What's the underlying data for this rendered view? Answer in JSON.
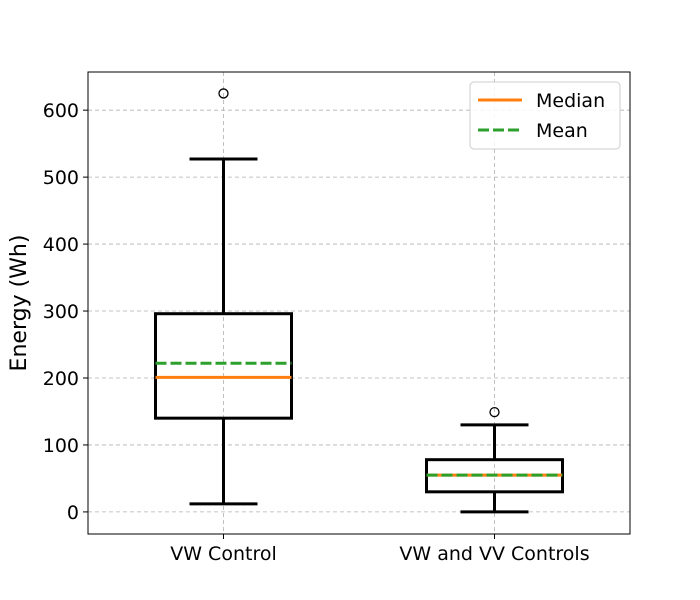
{
  "chart_data": {
    "type": "box",
    "ylabel": "Energy (Wh)",
    "xlabel": "",
    "title": "",
    "ylim": [
      -33,
      657
    ],
    "yticks": [
      0,
      100,
      200,
      300,
      400,
      500,
      600
    ],
    "grid": true,
    "legend": {
      "placement": "top-right",
      "entries": [
        {
          "label": "Median",
          "color": "#ff7f0e",
          "style": "solid"
        },
        {
          "label": "Mean",
          "color": "#2ca02c",
          "style": "dashed"
        }
      ]
    },
    "categories": [
      "VW Control",
      "VW and VV Controls"
    ],
    "boxes": [
      {
        "name": "VW Control",
        "whisker_low": 12,
        "q1": 140,
        "median": 201,
        "mean": 222,
        "q3": 296,
        "whisker_high": 527,
        "outliers": [
          625
        ]
      },
      {
        "name": "VW and VV Controls",
        "whisker_low": 0,
        "q1": 30,
        "median": 55,
        "mean": 55,
        "q3": 78,
        "whisker_high": 130,
        "outliers": [
          149
        ]
      }
    ]
  }
}
